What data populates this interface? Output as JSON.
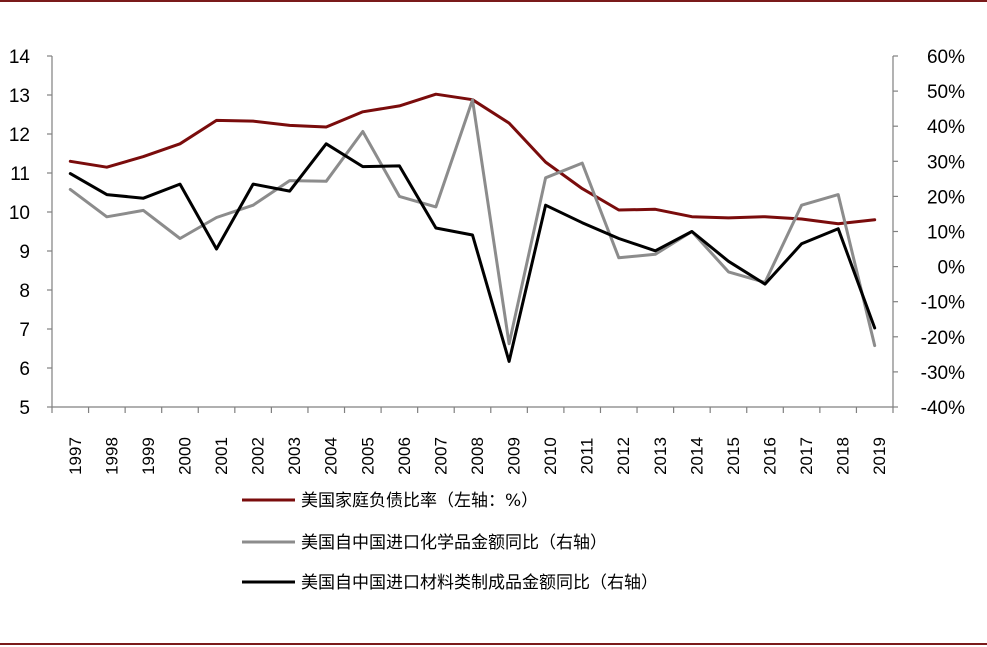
{
  "chart_data": {
    "type": "line",
    "x": [
      "1997",
      "1998",
      "1999",
      "2000",
      "2001",
      "2002",
      "2003",
      "2004",
      "2005",
      "2006",
      "2007",
      "2008",
      "2009",
      "2010",
      "2011",
      "2012",
      "2013",
      "2014",
      "2015",
      "2016",
      "2017",
      "2018",
      "2019"
    ],
    "left_axis": {
      "ylim": [
        5,
        14
      ],
      "ticks": [
        "5",
        "6",
        "7",
        "8",
        "9",
        "10",
        "11",
        "12",
        "13",
        "14"
      ]
    },
    "right_axis": {
      "ylim": [
        -40,
        60
      ],
      "ticks": [
        "-40%",
        "-30%",
        "-20%",
        "-10%",
        "0%",
        "10%",
        "20%",
        "30%",
        "40%",
        "50%",
        "60%"
      ]
    },
    "grid": false,
    "legend_position": "bottom",
    "series": [
      {
        "name": "美国家庭负债比率（左轴：%）",
        "axis": "left",
        "color": "#7a0c0c",
        "values": [
          11.3,
          11.15,
          11.42,
          11.75,
          12.35,
          12.33,
          12.22,
          12.18,
          12.57,
          12.72,
          13.02,
          12.88,
          12.28,
          11.28,
          10.6,
          10.05,
          10.07,
          9.88,
          9.85,
          9.88,
          9.82,
          9.7,
          9.8
        ]
      },
      {
        "name": "美国自中国进口化学品金额同比（右轴）",
        "axis": "right",
        "color": "#8c8c8c",
        "values": [
          22,
          14.2,
          16,
          8,
          14,
          17.5,
          24.5,
          24.3,
          38.5,
          20,
          17,
          47.5,
          -22,
          25.3,
          29.5,
          2.5,
          3.5,
          10,
          -1.5,
          -4.5,
          17.5,
          20.5,
          -22.5
        ]
      },
      {
        "name": "美国自中国进口材料类制成品金额同比（右轴）",
        "axis": "right",
        "color": "#000000",
        "values": [
          26.5,
          20.5,
          19.5,
          23.5,
          5,
          23.5,
          21.5,
          35,
          28.5,
          28.7,
          11,
          9,
          -27,
          17.5,
          12.5,
          8,
          4.5,
          10,
          1.5,
          -5,
          6.5,
          10.8,
          -17.5
        ]
      }
    ]
  }
}
